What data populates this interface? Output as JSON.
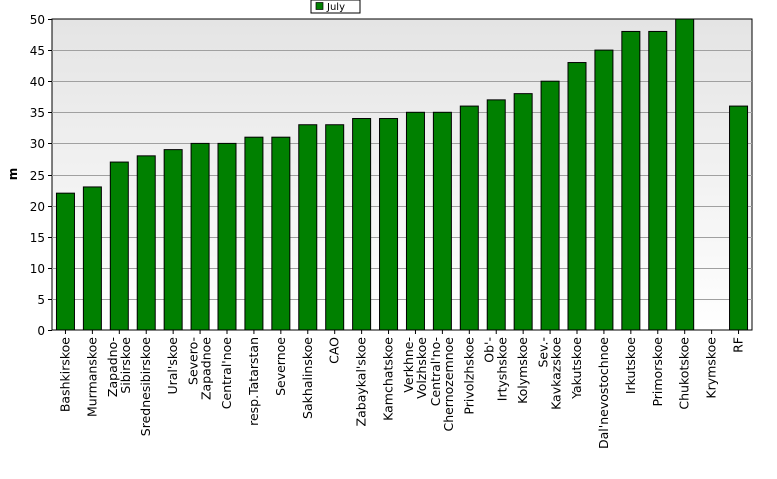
{
  "chart_data": {
    "type": "bar",
    "title": "",
    "xlabel": "",
    "ylabel": "m",
    "ylim": [
      0,
      50
    ],
    "yticks": [
      0,
      5,
      10,
      15,
      20,
      25,
      30,
      35,
      40,
      45,
      50
    ],
    "grid": true,
    "legend_position": "top-center",
    "categories": [
      "Bashkirskoe",
      "Murmanskoe",
      "Zapadno-Sibirskoe",
      "Srednesibirskoe",
      "Ural'skoe",
      "Severo-Zapadnoe",
      "Central'noe",
      "resp.Tatarstan",
      "Severnoe",
      "Sakhalinskoe",
      "CAO",
      "Zabaykal'skoe",
      "Kamchatskoe",
      "Verkhne-Volzhskoe",
      "Central'no-Chernozemnoe",
      "Privolzhskoe",
      "Ob'-Irtyshskoe",
      "Kolymskoe",
      "Sev.-Kavkazskoe",
      "Yakutskoe",
      "Dal'nevostochnoe",
      "Irkutskoe",
      "Primorskoe",
      "Chukotskoe",
      "Krymskoe",
      "RF"
    ],
    "category_lines": [
      [
        "Bashkirskoe"
      ],
      [
        "Murmanskoe"
      ],
      [
        "Zapadno-",
        "Sibirskoe"
      ],
      [
        "Srednesibirskoe"
      ],
      [
        "Ural'skoe"
      ],
      [
        "Severo-",
        "Zapadnoe"
      ],
      [
        "Central'noe"
      ],
      [
        "resp.Tatarstan"
      ],
      [
        "Severnoe"
      ],
      [
        "Sakhalinskoe"
      ],
      [
        "CAO"
      ],
      [
        "Zabaykal'skoe"
      ],
      [
        "Kamchatskoe"
      ],
      [
        "Verkhne-",
        "Volzhskoe"
      ],
      [
        "Central'no-",
        "Chernozemnoe"
      ],
      [
        "Privolzhskoe"
      ],
      [
        "Ob'-",
        "Irtyshskoe"
      ],
      [
        "Kolymskoe"
      ],
      [
        "Sev.-",
        "Kavkazskoe"
      ],
      [
        "Yakutskoe"
      ],
      [
        "Dal'nevostochnoe"
      ],
      [
        "Irkutskoe"
      ],
      [
        "Primorskoe"
      ],
      [
        "Chukotskoe"
      ],
      [
        "Krymskoe"
      ],
      [
        "RF"
      ]
    ],
    "series": [
      {
        "name": "July",
        "color": "#008000",
        "values": [
          22,
          23,
          27,
          28,
          29,
          30,
          30,
          31,
          31,
          33,
          33,
          34,
          34,
          35,
          35,
          36,
          37,
          38,
          40,
          43,
          45,
          48,
          48,
          50,
          null,
          36
        ]
      }
    ]
  }
}
